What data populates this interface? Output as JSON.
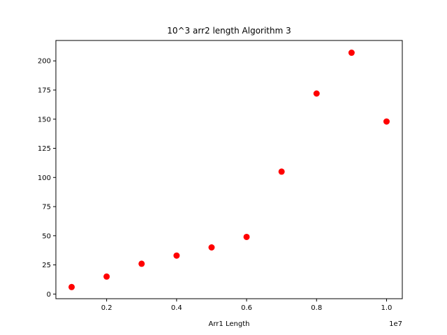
{
  "chart_data": {
    "type": "scatter",
    "title": "10^3 arr2 length Algorithm 3",
    "xlabel": "Arr1 Length",
    "ylabel": "",
    "x_offset_text": "1e7",
    "x_scale": 10000000,
    "xlim": [
      550000,
      10450000
    ],
    "ylim": [
      -4,
      217.5
    ],
    "xticks": [
      2000000,
      4000000,
      6000000,
      8000000,
      10000000
    ],
    "xtick_labels": [
      "0.2",
      "0.4",
      "0.6",
      "0.8",
      "1.0"
    ],
    "yticks": [
      0,
      25,
      50,
      75,
      100,
      125,
      150,
      175,
      200
    ],
    "ytick_labels": [
      "0",
      "25",
      "50",
      "75",
      "100",
      "125",
      "150",
      "175",
      "200"
    ],
    "grid": false,
    "series": [
      {
        "color": "#ff0000",
        "marker": "circle",
        "points": [
          {
            "x": 1000000,
            "y": 6
          },
          {
            "x": 2000000,
            "y": 15
          },
          {
            "x": 3000000,
            "y": 26
          },
          {
            "x": 4000000,
            "y": 33
          },
          {
            "x": 5000000,
            "y": 40
          },
          {
            "x": 6000000,
            "y": 49
          },
          {
            "x": 7000000,
            "y": 105
          },
          {
            "x": 8000000,
            "y": 172
          },
          {
            "x": 9000000,
            "y": 207
          },
          {
            "x": 10000000,
            "y": 148
          }
        ]
      }
    ]
  }
}
